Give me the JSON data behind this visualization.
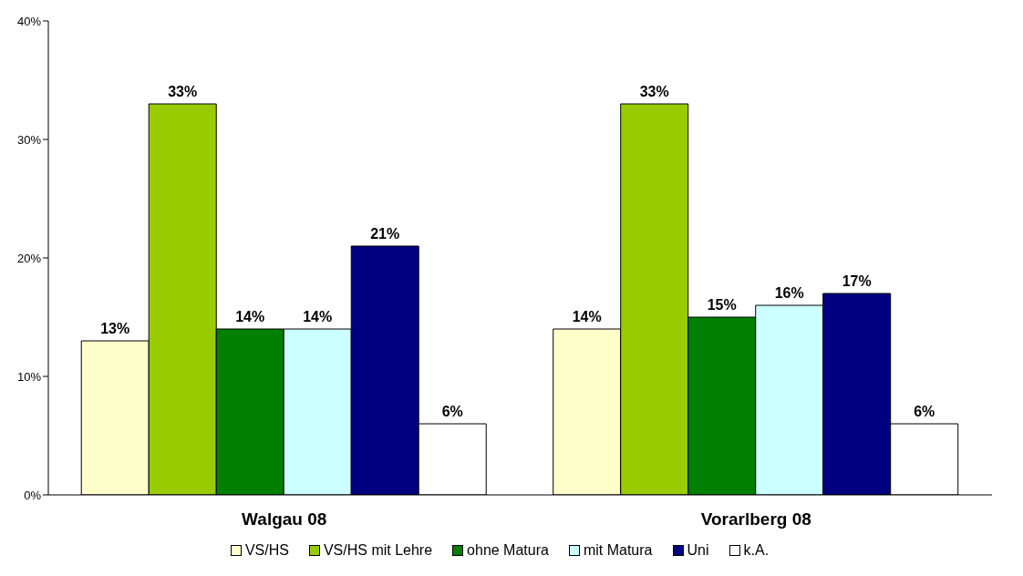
{
  "chart_data": {
    "type": "bar",
    "categories": [
      "Walgau 08",
      "Vorarlberg 08"
    ],
    "series": [
      {
        "name": "VS/HS",
        "color": "#ffffcc",
        "values": [
          13,
          14
        ]
      },
      {
        "name": "VS/HS mit Lehre",
        "color": "#99cc00",
        "values": [
          33,
          33
        ]
      },
      {
        "name": "ohne Matura",
        "color": "#008000",
        "values": [
          14,
          15
        ]
      },
      {
        "name": "mit Matura",
        "color": "#ccffff",
        "values": [
          14,
          16
        ]
      },
      {
        "name": "Uni",
        "color": "#000080",
        "values": [
          21,
          17
        ]
      },
      {
        "name": "k.A.",
        "color": "#ffffff",
        "values": [
          6,
          6
        ]
      }
    ],
    "ylim": [
      0,
      40
    ],
    "yticks": [
      {
        "value": 0,
        "label": "0%"
      },
      {
        "value": 10,
        "label": "10%"
      },
      {
        "value": 20,
        "label": "20%"
      },
      {
        "value": 30,
        "label": "30%"
      },
      {
        "value": 40,
        "label": "40%"
      }
    ],
    "value_labels": [
      [
        "13%",
        "14%"
      ],
      [
        "33%",
        "33%"
      ],
      [
        "14%",
        "15%"
      ],
      [
        "14%",
        "16%"
      ],
      [
        "21%",
        "17%"
      ],
      [
        "6%",
        "6%"
      ]
    ],
    "grid": false,
    "legend": "bottom"
  }
}
